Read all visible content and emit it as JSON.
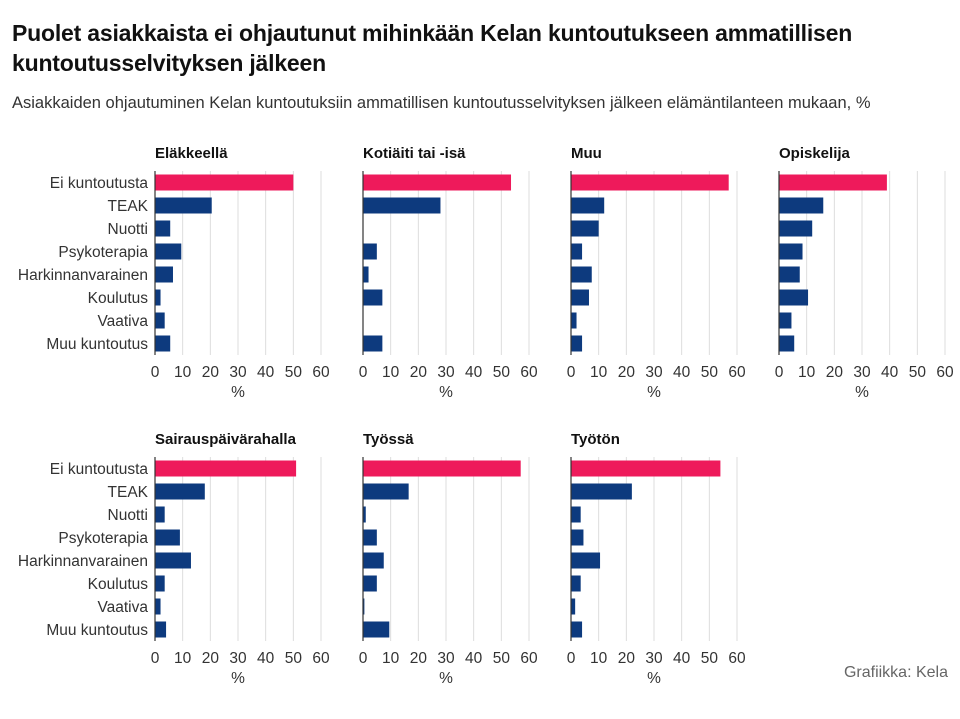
{
  "title": "Puolet asiakkaista ei ohjautunut mihinkään Kelan kuntoutukseen ammatillisen kuntoutusselvityksen jälkeen",
  "subtitle": "Asiakkaiden ohjautuminen Kelan kuntoutuksiin ammatillisen kuntoutusselvityksen jälkeen elämäntilanteen mukaan, %",
  "credit": "Grafiikka: Kela",
  "colors": {
    "highlight": "#ee1a5b",
    "bar": "#0d3a7e",
    "grid": "#dddddd",
    "axis": "#333333"
  },
  "chart_data": {
    "type": "bar",
    "orientation": "horizontal",
    "categories": [
      "Ei kuntoutusta",
      "TEAK",
      "Nuotti",
      "Psykoterapia",
      "Harkinnanvarainen",
      "Koulutus",
      "Vaativa",
      "Muu kuntoutus"
    ],
    "xlabel": "%",
    "xlim": [
      0,
      60
    ],
    "xticks": [
      0,
      10,
      20,
      30,
      40,
      50,
      60
    ],
    "grid": true,
    "panels": [
      {
        "name": "Eläkkeellä",
        "values": [
          50,
          20.5,
          5.5,
          9.5,
          6.5,
          2,
          3.5,
          5.5
        ]
      },
      {
        "name": "Kotiäiti tai -isä",
        "values": [
          53.5,
          28,
          0,
          5,
          2,
          7,
          0,
          7
        ]
      },
      {
        "name": "Muu",
        "values": [
          57,
          12,
          10,
          4,
          7.5,
          6.5,
          2,
          4
        ]
      },
      {
        "name": "Opiskelija",
        "values": [
          39,
          16,
          12,
          8.5,
          7.5,
          10.5,
          4.5,
          5.5
        ]
      },
      {
        "name": "Sairauspäivärahalla",
        "values": [
          51,
          18,
          3.5,
          9,
          13,
          3.5,
          2,
          4
        ]
      },
      {
        "name": "Työssä",
        "values": [
          57,
          16.5,
          1,
          5,
          7.5,
          5,
          0.5,
          9.5
        ]
      },
      {
        "name": "Työtön",
        "values": [
          54,
          22,
          3.5,
          4.5,
          10.5,
          3.5,
          1.5,
          4
        ]
      }
    ]
  }
}
